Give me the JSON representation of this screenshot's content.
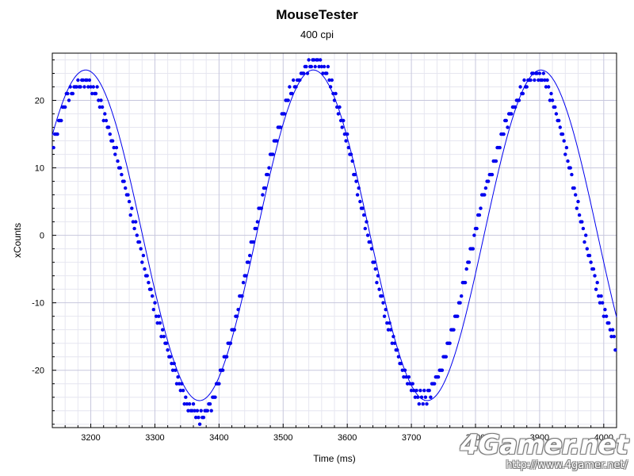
{
  "chart_data": {
    "type": "scatter",
    "title": "MouseTester",
    "subtitle": "400 cpi",
    "xlabel": "Time (ms)",
    "ylabel": "xCounts",
    "xlim": [
      3140,
      4020
    ],
    "ylim": [
      -28.5,
      27
    ],
    "x_ticks": [
      3200,
      3300,
      3400,
      3500,
      3600,
      3700,
      3800,
      3900,
      4000
    ],
    "y_ticks": [
      -20,
      -10,
      0,
      10,
      20
    ],
    "grid": true,
    "legend": "none",
    "series": [
      {
        "style": "points",
        "color": "#0000ee",
        "x_start": 3142,
        "x_step": 2,
        "x_end": 4018,
        "y_ref_points": [
          [
            3142,
            14
          ],
          [
            3160,
            20
          ],
          [
            3175,
            22
          ],
          [
            3190,
            23
          ],
          [
            3210,
            21
          ],
          [
            3240,
            12
          ],
          [
            3270,
            1
          ],
          [
            3300,
            -11
          ],
          [
            3330,
            -20
          ],
          [
            3350,
            -25
          ],
          [
            3370,
            -27
          ],
          [
            3390,
            -25
          ],
          [
            3420,
            -15
          ],
          [
            3450,
            -2
          ],
          [
            3480,
            11
          ],
          [
            3510,
            21
          ],
          [
            3530,
            24
          ],
          [
            3550,
            26
          ],
          [
            3570,
            24
          ],
          [
            3600,
            14
          ],
          [
            3630,
            1
          ],
          [
            3660,
            -12
          ],
          [
            3690,
            -21
          ],
          [
            3710,
            -24
          ],
          [
            3725,
            -24
          ],
          [
            3745,
            -20
          ],
          [
            3775,
            -10
          ],
          [
            3810,
            5
          ],
          [
            3845,
            16
          ],
          [
            3870,
            21
          ],
          [
            3890,
            24
          ],
          [
            3910,
            23
          ],
          [
            3935,
            15
          ],
          [
            3965,
            2
          ],
          [
            3990,
            -8
          ],
          [
            4010,
            -14
          ],
          [
            4018,
            -16
          ]
        ]
      },
      {
        "style": "line",
        "color": "#0000ee",
        "fit": "sine",
        "amplitude": 24.5,
        "period_ms": 355,
        "center_ms": 3547,
        "offset": 0
      }
    ]
  },
  "watermark": {
    "logo": "4Gamer.net",
    "url": "http://www.4gamer.net/"
  }
}
